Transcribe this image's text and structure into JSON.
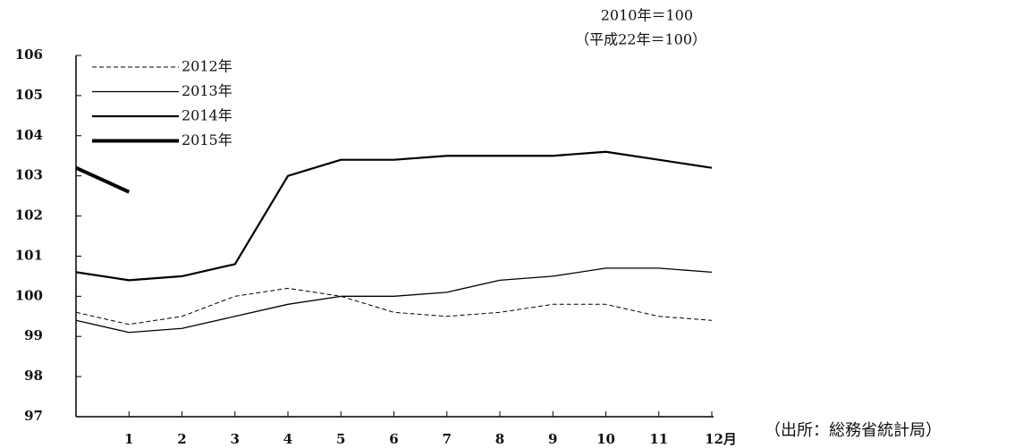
{
  "chart_data": {
    "type": "line",
    "annotations": [
      "2010年＝100",
      "（平成22年＝100）",
      "（出所：総務省統計局）"
    ],
    "x": [
      0,
      1,
      2,
      3,
      4,
      5,
      6,
      7,
      8,
      9,
      10,
      11,
      12
    ],
    "xlim": [
      0,
      12
    ],
    "xticks": [
      1,
      2,
      3,
      4,
      5,
      6,
      7,
      8,
      9,
      10,
      11,
      {
        "value": 12,
        "label": "12月"
      }
    ],
    "ylim": [
      97,
      106
    ],
    "yticks": [
      97,
      98,
      99,
      100,
      101,
      102,
      103,
      104,
      105,
      106
    ],
    "legend": "upper left",
    "series": [
      {
        "name": "2012年",
        "color": "#000000",
        "dashed": true,
        "line_width": 1,
        "values": [
          99.6,
          99.3,
          99.5,
          100.0,
          100.2,
          100.0,
          99.6,
          99.5,
          99.6,
          99.8,
          99.8,
          99.5,
          99.4
        ]
      },
      {
        "name": "2013年",
        "color": "#000000",
        "dashed": false,
        "line_width": 1.3,
        "values": [
          99.4,
          99.1,
          99.2,
          99.5,
          99.8,
          100.0,
          100.0,
          100.1,
          100.4,
          100.5,
          100.7,
          100.7,
          100.6
        ]
      },
      {
        "name": "2014年",
        "color": "#000000",
        "dashed": false,
        "line_width": 2.2,
        "values": [
          100.6,
          100.4,
          100.5,
          100.8,
          103.0,
          103.4,
          103.4,
          103.5,
          103.5,
          103.5,
          103.6,
          103.4,
          103.2
        ]
      },
      {
        "name": "2015年",
        "color": "#000000",
        "dashed": false,
        "line_width": 4,
        "values": [
          103.2,
          102.6,
          null,
          null,
          null,
          null,
          null,
          null,
          null,
          null,
          null,
          null,
          null
        ]
      }
    ]
  }
}
